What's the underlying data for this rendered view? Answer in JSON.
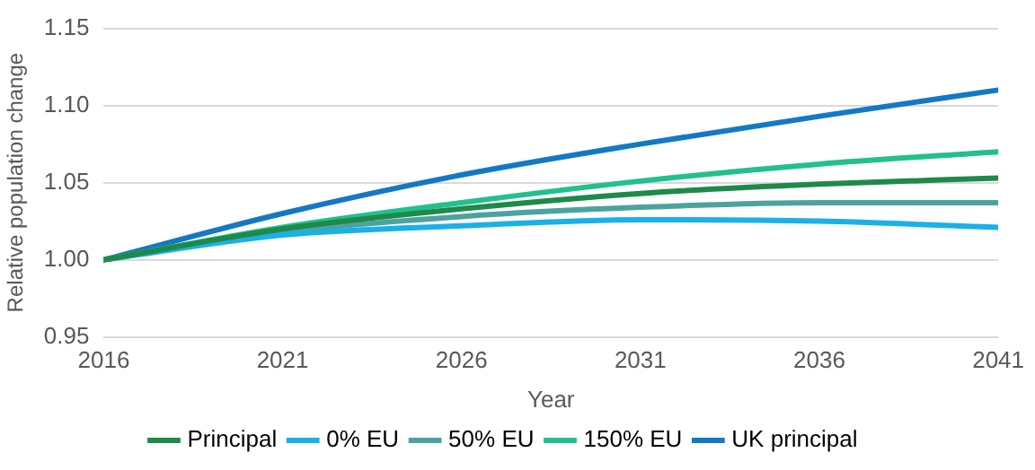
{
  "chart_data": {
    "type": "line",
    "xlabel": "Year",
    "ylabel": "Relative population change",
    "x": [
      2016,
      2021,
      2026,
      2031,
      2036,
      2041
    ],
    "xlim": [
      2016,
      2041
    ],
    "xticks": [
      2016,
      2021,
      2026,
      2031,
      2036,
      2041
    ],
    "ylim": [
      0.95,
      1.15
    ],
    "yticks": [
      {
        "value": 0.95,
        "label": "0.95"
      },
      {
        "value": 1,
        "label": "1.00"
      },
      {
        "value": 1.05,
        "label": "1.05"
      },
      {
        "value": 1.1,
        "label": "1.10"
      },
      {
        "value": 1.15,
        "label": "1.15"
      }
    ],
    "grid": "y",
    "legend": "bottom",
    "marker": "none",
    "line_style": "solid",
    "series": [
      {
        "name": "Principal",
        "color": "#1e8a4a",
        "values": [
          1.0,
          1.02,
          1.033,
          1.043,
          1.049,
          1.053
        ]
      },
      {
        "name": "0% EU",
        "color": "#1ab0e8",
        "values": [
          1.0,
          1.016,
          1.022,
          1.026,
          1.025,
          1.021
        ]
      },
      {
        "name": "50% EU",
        "color": "#4ba3a0",
        "values": [
          1.0,
          1.018,
          1.028,
          1.034,
          1.037,
          1.037
        ]
      },
      {
        "name": "150% EU",
        "color": "#22c08f",
        "values": [
          1.0,
          1.021,
          1.037,
          1.051,
          1.062,
          1.07
        ]
      },
      {
        "name": "UK principal",
        "color": "#1479c4",
        "values": [
          1.0,
          1.03,
          1.055,
          1.075,
          1.093,
          1.11
        ]
      }
    ]
  }
}
